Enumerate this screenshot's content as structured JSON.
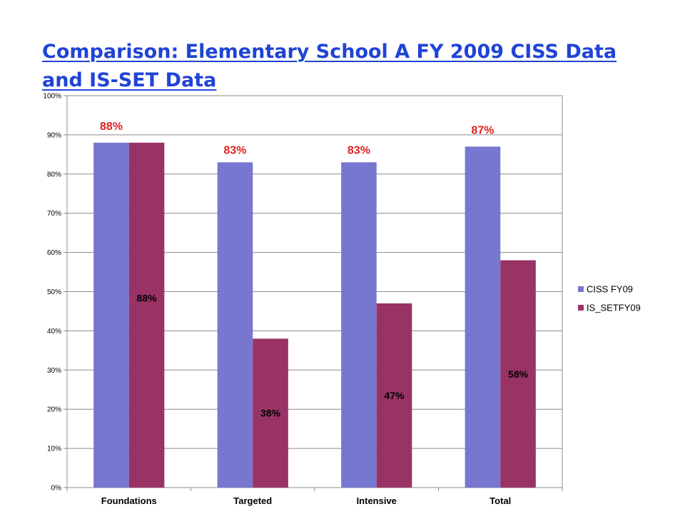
{
  "slide": {
    "title": "Comparison: Elementary School A FY 2009 CISS Data and IS-SET Data"
  },
  "chart_data": {
    "type": "bar",
    "categories": [
      "Foundations",
      "Targeted",
      "Intensive",
      "Total"
    ],
    "series": [
      {
        "name": "CISS FY09",
        "values": [
          88,
          83,
          83,
          87
        ],
        "labels": [
          "88%",
          "83%",
          "83%",
          "87%"
        ],
        "color": "#7777cf",
        "label_color": "#e02020"
      },
      {
        "name": "IS_SETFY09",
        "values": [
          88,
          38,
          47,
          58
        ],
        "labels": [
          "88%",
          "38%",
          "47%",
          "58%"
        ],
        "color": "#993366",
        "label_color": "#000000"
      }
    ],
    "ylim": [
      0,
      100
    ],
    "y_ticks": [
      "0%",
      "10%",
      "20%",
      "30%",
      "40%",
      "50%",
      "60%",
      "70%",
      "80%",
      "90%",
      "100%"
    ],
    "grid": true,
    "legend_position": "right"
  }
}
